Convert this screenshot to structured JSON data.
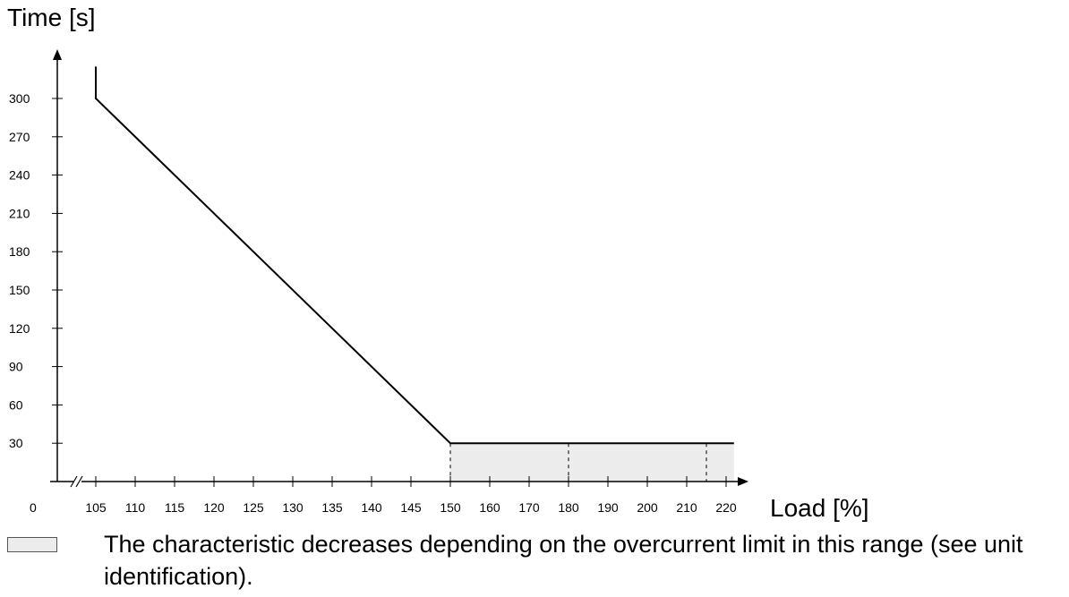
{
  "chart_data": {
    "type": "line",
    "ylabel": "Time [s]",
    "xlabel": "Load [%]",
    "y_ticks": [
      30,
      60,
      90,
      120,
      150,
      180,
      210,
      240,
      270,
      300
    ],
    "x_origin_label": "0",
    "x_ticks": [
      105,
      110,
      115,
      120,
      125,
      130,
      135,
      140,
      145,
      150,
      160,
      170,
      180,
      190,
      200,
      210,
      220
    ],
    "axis_break": "between 0 and 105 on the load axis",
    "series": [
      {
        "x": [
          105,
          105,
          150,
          222
        ],
        "y": [
          325,
          300,
          30,
          30
        ]
      }
    ],
    "shaded_range": {
      "x_from": 150,
      "x_to": 222,
      "y_from": 0,
      "y_to": 30,
      "color": "#ececec"
    },
    "dashed_verticals_x": [
      150,
      180,
      215
    ],
    "line_color": "#000000"
  },
  "legend": {
    "text": "The characteristic decreases depending on the overcurrent limit in this range (see unit identification)."
  }
}
